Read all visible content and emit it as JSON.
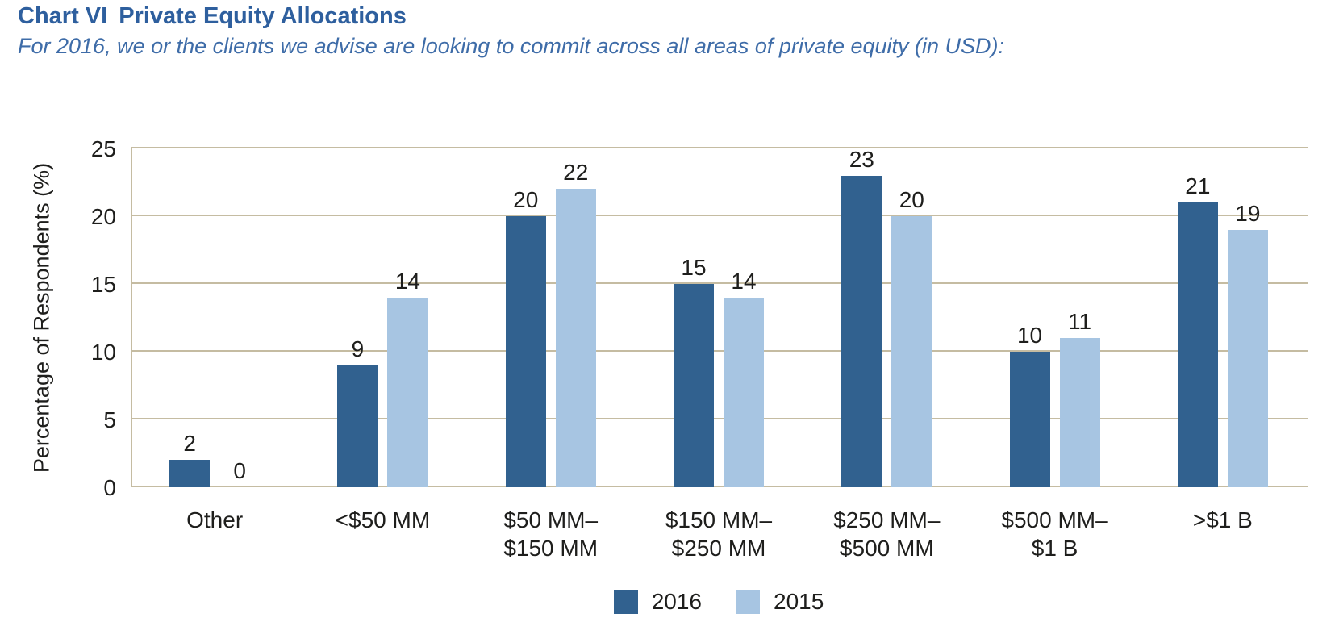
{
  "header": {
    "chart_label": "Chart VI",
    "title": "Private Equity Allocations",
    "subtitle": "For 2016, we or the clients we advise are looking to commit across all areas of private equity (in USD):"
  },
  "chart_data": {
    "type": "bar",
    "title": "Chart VI  Private Equity Allocations",
    "subtitle": "For 2016, we or the clients we advise are looking to commit across all areas of private equity (in USD):",
    "categories": [
      "Other",
      "<$50 MM",
      "$50 MM–$150 MM",
      "$150 MM–$250 MM",
      "$250 MM–$500 MM",
      "$500 MM–$1 B",
      ">$1 B"
    ],
    "categories_display": [
      "Other",
      "<$50 MM",
      "$50 MM–\n$150 MM",
      "$150 MM–\n$250 MM",
      "$250 MM–\n$500 MM",
      "$500 MM–\n$1 B",
      ">$1 B"
    ],
    "series": [
      {
        "name": "2016",
        "color": "#31618f",
        "values": [
          2,
          9,
          20,
          15,
          23,
          10,
          21
        ]
      },
      {
        "name": "2015",
        "color": "#a7c5e2",
        "values": [
          0,
          14,
          22,
          14,
          20,
          11,
          19
        ]
      }
    ],
    "xlabel": "",
    "ylabel": "Percentage of Respondents (%)",
    "ylim": [
      0,
      25
    ],
    "yticks": [
      0,
      5,
      10,
      15,
      20,
      25
    ],
    "grid": true,
    "legend_position": "bottom",
    "value_labels": true
  },
  "colors": {
    "title": "#2e5f9e",
    "subtitle": "#3e6ca8",
    "text": "#1e1e1c",
    "gridline": "#c5bca2",
    "bar_2016": "#31618f",
    "bar_2015": "#a7c5e2",
    "background": "#ffffff"
  }
}
